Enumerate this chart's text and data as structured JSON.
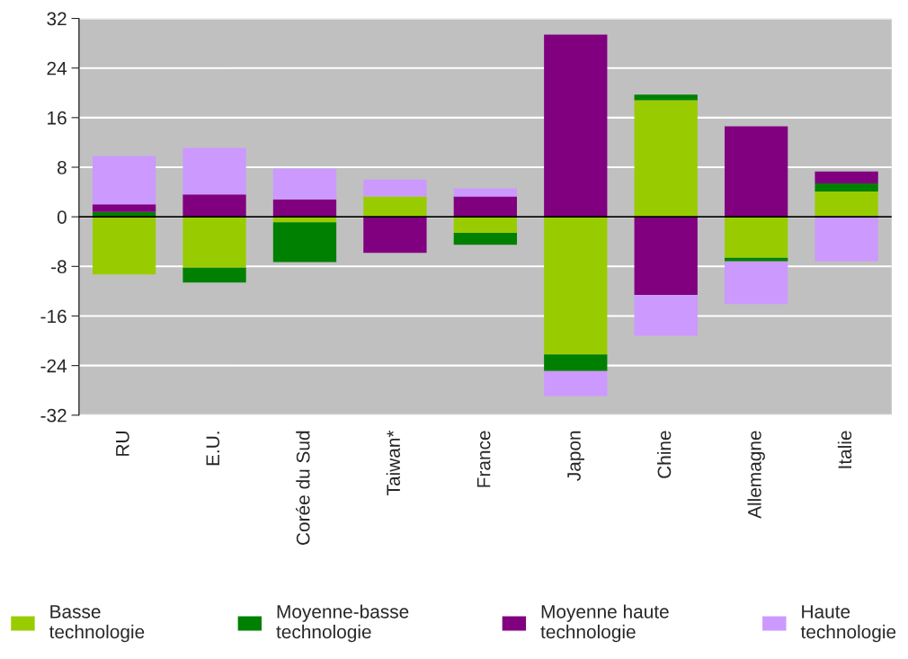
{
  "chart_data": {
    "type": "bar",
    "stacked": true,
    "categories": [
      "RU",
      "E.U.",
      "Corée du Sud",
      "Taiwan*",
      "France",
      "Japon",
      "Chine",
      "Allemagne",
      "Italie"
    ],
    "series": [
      {
        "name": "Basse\ntechnologie",
        "color": "#99cc00",
        "values": [
          -9.3,
          -8.2,
          -0.9,
          3.3,
          -2.6,
          -22.2,
          18.8,
          -6.6,
          4.1
        ]
      },
      {
        "name": "Moyenne-basse\ntechnologie",
        "color": "#008000",
        "values": [
          0.8,
          -2.4,
          -6.4,
          null,
          -1.9,
          -2.7,
          0.9,
          -0.6,
          1.3
        ]
      },
      {
        "name": "Moyenne haute\ntechnologie",
        "color": "#800080",
        "values": [
          1.2,
          3.6,
          2.8,
          -5.8,
          3.3,
          29.4,
          -12.6,
          14.6,
          1.9
        ]
      },
      {
        "name": "Haute\ntechnologie",
        "color": "#cc99ff",
        "values": [
          7.8,
          7.5,
          5.0,
          2.7,
          1.3,
          -4.0,
          -6.6,
          -6.9,
          -7.2
        ]
      }
    ],
    "ylim": [
      -32,
      32
    ],
    "yticks": [
      -32,
      -24,
      -16,
      -8,
      0,
      8,
      16,
      24,
      32
    ],
    "grid": "y",
    "legend": "bottom"
  }
}
